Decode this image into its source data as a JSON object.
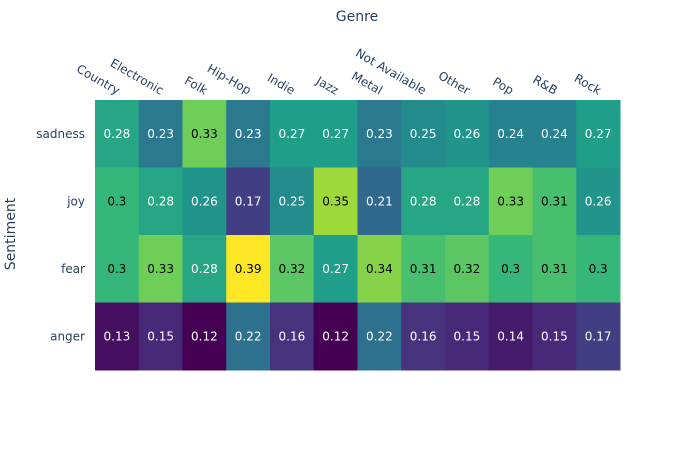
{
  "chart_data": {
    "type": "heatmap",
    "xlabel": "Genre",
    "ylabel": "Sentiment",
    "x": [
      "Country",
      "Electronic",
      "Folk",
      "Hip-Hop",
      "Indie",
      "Jazz",
      "Metal",
      "Not Available",
      "Other",
      "Pop",
      "R&B",
      "Rock"
    ],
    "y": [
      "sadness",
      "joy",
      "fear",
      "anger"
    ],
    "z": [
      [
        0.28,
        0.23,
        0.33,
        0.23,
        0.27,
        0.27,
        0.23,
        0.25,
        0.26,
        0.24,
        0.24,
        0.27
      ],
      [
        0.3,
        0.28,
        0.26,
        0.17,
        0.25,
        0.35,
        0.21,
        0.28,
        0.28,
        0.33,
        0.31,
        0.26
      ],
      [
        0.3,
        0.33,
        0.28,
        0.39,
        0.32,
        0.27,
        0.34,
        0.31,
        0.32,
        0.3,
        0.31,
        0.3
      ],
      [
        0.13,
        0.15,
        0.12,
        0.22,
        0.16,
        0.12,
        0.22,
        0.16,
        0.15,
        0.14,
        0.15,
        0.17
      ]
    ],
    "colorscale": "Viridis",
    "text_auto": true
  }
}
